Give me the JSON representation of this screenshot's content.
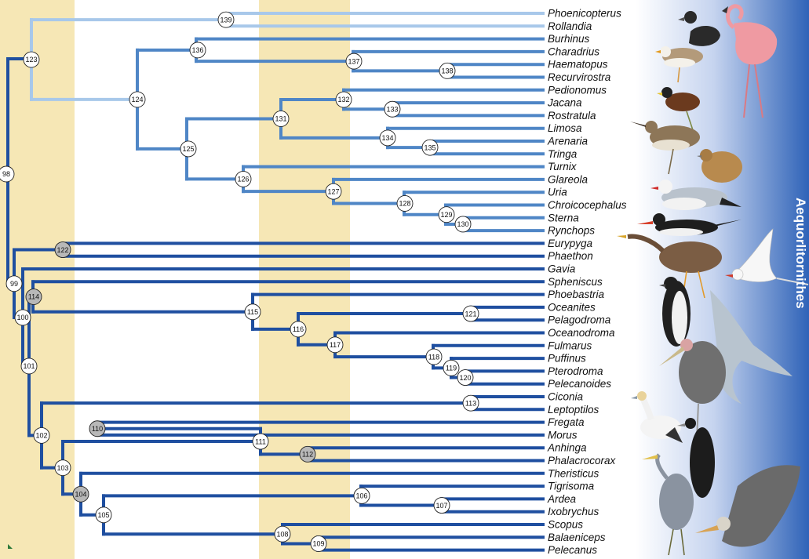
{
  "colors": {
    "band": "#f6e7b5",
    "light_branch": "#a8c8ea",
    "mid_branch": "#4f86c6",
    "dark_branch": "#1f4fa0",
    "gradient_start": "#ffffff",
    "gradient_end": "#2f63b8",
    "node_fill": "#ffffff",
    "node_grey": "#b8b8b8"
  },
  "clade_label": "Aequorlitornithes",
  "left_node_label": "98",
  "taxa": [
    "Phoenicopterus",
    "Rollandia",
    "Burhinus",
    "Charadrius",
    "Haematopus",
    "Recurvirostra",
    "Pedionomus",
    "Jacana",
    "Rostratula",
    "Limosa",
    "Arenaria",
    "Tringa",
    "Turnix",
    "Glareola",
    "Uria",
    "Chroicocephalus",
    "Sterna",
    "Rynchops",
    "Eurypyga",
    "Phaethon",
    "Gavia",
    "Spheniscus",
    "Phoebastria",
    "Oceanites",
    "Pelagodroma",
    "Oceanodroma",
    "Fulmarus",
    "Puffinus",
    "Pterodroma",
    "Pelecanoides",
    "Ciconia",
    "Leptoptilos",
    "Fregata",
    "Morus",
    "Anhinga",
    "Phalacrocorax",
    "Theristicus",
    "Tigrisoma",
    "Ardea",
    "Ixobrychus",
    "Scopus",
    "Balaeniceps",
    "Pelecanus"
  ],
  "nodes": [
    {
      "id": "139",
      "shade": "white"
    },
    {
      "id": "123",
      "shade": "white"
    },
    {
      "id": "136",
      "shade": "white"
    },
    {
      "id": "137",
      "shade": "white"
    },
    {
      "id": "138",
      "shade": "white"
    },
    {
      "id": "124",
      "shade": "white"
    },
    {
      "id": "132",
      "shade": "white"
    },
    {
      "id": "133",
      "shade": "white"
    },
    {
      "id": "131",
      "shade": "white"
    },
    {
      "id": "134",
      "shade": "white"
    },
    {
      "id": "135",
      "shade": "white"
    },
    {
      "id": "125",
      "shade": "white"
    },
    {
      "id": "126",
      "shade": "white"
    },
    {
      "id": "127",
      "shade": "white"
    },
    {
      "id": "128",
      "shade": "white"
    },
    {
      "id": "129",
      "shade": "white"
    },
    {
      "id": "130",
      "shade": "white"
    },
    {
      "id": "122",
      "shade": "grey"
    },
    {
      "id": "99",
      "shade": "white"
    },
    {
      "id": "114",
      "shade": "grey"
    },
    {
      "id": "100",
      "shade": "white"
    },
    {
      "id": "115",
      "shade": "white"
    },
    {
      "id": "121",
      "shade": "white"
    },
    {
      "id": "116",
      "shade": "white"
    },
    {
      "id": "117",
      "shade": "white"
    },
    {
      "id": "118",
      "shade": "white"
    },
    {
      "id": "119",
      "shade": "white"
    },
    {
      "id": "120",
      "shade": "white"
    },
    {
      "id": "101",
      "shade": "white"
    },
    {
      "id": "113",
      "shade": "white"
    },
    {
      "id": "102",
      "shade": "white"
    },
    {
      "id": "110",
      "shade": "grey"
    },
    {
      "id": "111",
      "shade": "white"
    },
    {
      "id": "112",
      "shade": "grey"
    },
    {
      "id": "103",
      "shade": "white"
    },
    {
      "id": "104",
      "shade": "grey"
    },
    {
      "id": "106",
      "shade": "white"
    },
    {
      "id": "107",
      "shade": "white"
    },
    {
      "id": "105",
      "shade": "white"
    },
    {
      "id": "108",
      "shade": "white"
    },
    {
      "id": "109",
      "shade": "white"
    }
  ]
}
